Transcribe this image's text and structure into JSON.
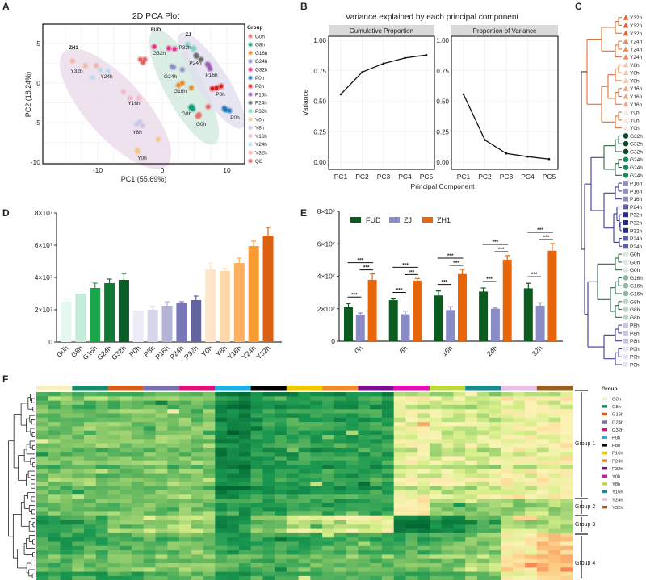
{
  "panel_labels": [
    "A",
    "B",
    "C",
    "D",
    "E",
    "F"
  ],
  "chart_data": [
    {
      "panel": "A",
      "type": "scatter",
      "title": "2D PCA Plot",
      "xlabel": "PC1 (55.69%)",
      "ylabel": "PC2 (18.24%)",
      "xlim": [
        -18,
        13
      ],
      "ylim": [
        -10.2,
        7.3
      ],
      "xticks": [
        -10,
        0,
        10
      ],
      "yticks": [
        5,
        0,
        -5,
        -10
      ],
      "grid": true,
      "legend": {
        "title": "Group",
        "placement": "right"
      },
      "cluster_labels": [
        "FUD",
        "ZJ",
        "ZH1"
      ],
      "groups": [
        {
          "name": "G0h",
          "color": "#e8736e",
          "points": [
            [
              5.6,
              -4.1
            ],
            [
              5.5,
              -4.2
            ],
            [
              5.7,
              -4.0
            ]
          ]
        },
        {
          "name": "G8h",
          "color": "#1a9e77",
          "points": [
            [
              4.4,
              -3.1
            ],
            [
              4.75,
              -3.3
            ],
            [
              4.6,
              -3.0
            ]
          ]
        },
        {
          "name": "G16h",
          "color": "#e88a2a",
          "points": [
            [
              2.5,
              -0.3
            ],
            [
              3.1,
              0.0
            ],
            [
              4.5,
              -0.6
            ]
          ]
        },
        {
          "name": "G24h",
          "color": "#8c8fc8",
          "points": [
            [
              1.5,
              2.1
            ],
            [
              1.75,
              2.0
            ],
            [
              3.1,
              1.7
            ]
          ]
        },
        {
          "name": "G32h",
          "color": "#e7298a",
          "points": [
            [
              -1.25,
              4.6
            ],
            [
              1.0,
              4.4
            ],
            [
              1.9,
              4.3
            ]
          ]
        },
        {
          "name": "P0h",
          "color": "#1f78b4",
          "points": [
            [
              9.6,
              -3.2
            ],
            [
              10.4,
              -3.5
            ],
            [
              9.8,
              -3.4
            ]
          ]
        },
        {
          "name": "P8h",
          "color": "#e31a1c",
          "points": [
            [
              7.75,
              -0.7
            ],
            [
              8.4,
              -0.6
            ],
            [
              9.1,
              -0.4
            ]
          ]
        },
        {
          "name": "P16h",
          "color": "#9b59b6",
          "points": [
            [
              7.0,
              2.4
            ],
            [
              7.2,
              2.2
            ],
            [
              7.4,
              1.8
            ]
          ]
        },
        {
          "name": "P24h",
          "color": "#6b6b6b",
          "points": [
            [
              5.25,
              3.5
            ],
            [
              6.0,
              3.0
            ],
            [
              5.3,
              3.4
            ]
          ]
        },
        {
          "name": "P32h",
          "color": "#7fd6c0",
          "points": [
            [
              3.9,
              4.9
            ],
            [
              4.9,
              4.4
            ],
            [
              4.8,
              4.3
            ]
          ]
        },
        {
          "name": "Y0h",
          "color": "#f5c48a",
          "points": [
            [
              -3.9,
              -8.5
            ],
            [
              -0.6,
              -7.1
            ],
            [
              -3.8,
              -8.7
            ]
          ]
        },
        {
          "name": "Y8h",
          "color": "#c8c8e6",
          "points": [
            [
              -4.0,
              -5.2
            ],
            [
              -3.5,
              -4.9
            ],
            [
              -3.1,
              -5.4
            ]
          ]
        },
        {
          "name": "Y16h",
          "color": "#f4b8c8",
          "points": [
            [
              -6.0,
              -1.1
            ],
            [
              -5.0,
              -1.9
            ],
            [
              -3.6,
              -1.9
            ]
          ]
        },
        {
          "name": "Y24h",
          "color": "#b8dcec",
          "points": [
            [
              -9.6,
              1.7
            ],
            [
              -8.4,
              1.5
            ],
            [
              -10.8,
              0.7
            ]
          ]
        },
        {
          "name": "Y32h",
          "color": "#f4b4a4",
          "points": [
            [
              -13.9,
              2.8
            ],
            [
              -11.9,
              2.2
            ],
            [
              -10.25,
              2.2
            ]
          ]
        },
        {
          "name": "QC",
          "color": "#e06060",
          "points": [
            [
              -3.4,
              3.0
            ],
            [
              -2.7,
              3.0
            ],
            [
              -3.0,
              2.6
            ],
            [
              7.1,
              -3.0
            ]
          ]
        }
      ]
    },
    {
      "panel": "B",
      "type": "line",
      "title": "Variance explained by each principal component",
      "xlabel": "Principal Component",
      "ylabel": "Variance",
      "ylim": [
        0,
        1
      ],
      "yticks": [
        "0.00",
        "0.25",
        "0.50",
        "0.75",
        "1.00"
      ],
      "grid": true,
      "categories": [
        "PC1",
        "PC2",
        "PC3",
        "PC4",
        "PC5"
      ],
      "facets": [
        {
          "name": "Cumulative Proportion",
          "values": [
            0.557,
            0.739,
            0.81,
            0.855,
            0.88
          ]
        },
        {
          "name": "Proportion of Variance",
          "values": [
            0.557,
            0.182,
            0.071,
            0.045,
            0.025
          ]
        }
      ]
    },
    {
      "panel": "C",
      "type": "dendrogram",
      "leaves": [
        {
          "label": "Y32h",
          "count": 3,
          "shape": "triangle",
          "color": "#e8602a"
        },
        {
          "label": "Y24h",
          "count": 3,
          "shape": "triangle",
          "color": "#f08a5a"
        },
        {
          "label": "Y8h",
          "count": 3,
          "shape": "triangle",
          "color": "#f6c8b8"
        },
        {
          "label": "Y16h",
          "count": 3,
          "shape": "triangle",
          "color": "#f4a080"
        },
        {
          "label": "Y0h",
          "count": 3,
          "shape": "triangle",
          "color": "#f8e8e0"
        },
        {
          "label": "G32h",
          "count": 3,
          "shape": "circle",
          "color": "#0a4a2a"
        },
        {
          "label": "G24h",
          "count": 3,
          "shape": "circle",
          "color": "#1a8a5a"
        },
        {
          "label": "P16h",
          "count": 3,
          "shape": "square",
          "color": "#9090c0"
        },
        {
          "label": "P24h",
          "count": 1,
          "shape": "square",
          "color": "#6060a8"
        },
        {
          "label": "P32h",
          "count": 3,
          "shape": "square",
          "color": "#2a2a8a"
        },
        {
          "label": "P24h",
          "count": 2,
          "shape": "square",
          "color": "#6060a8"
        },
        {
          "label": "G0h",
          "count": 3,
          "shape": "circle",
          "color": "#dde8e0"
        },
        {
          "label": "G16h",
          "count": 3,
          "shape": "circle",
          "color": "#8ab8a0"
        },
        {
          "label": "G8h",
          "count": 3,
          "shape": "circle",
          "color": "#b8d8c4"
        },
        {
          "label": "P8h",
          "count": 3,
          "shape": "square",
          "color": "#c8c8e0"
        },
        {
          "label": "P0h",
          "count": 3,
          "shape": "square",
          "color": "#e6e6f0"
        }
      ],
      "branch_colors": {
        "Y": "#e07030",
        "G": "#2a6a40",
        "P": "#3a3a9a",
        "root": "#444444"
      }
    },
    {
      "panel": "D",
      "type": "bar",
      "ylim": [
        0,
        80000000
      ],
      "yticks": [
        "0",
        "2×10⁷",
        "4×10⁷",
        "6×10⁷",
        "8×10⁷"
      ],
      "categories": [
        "G0h",
        "G8h",
        "G16h",
        "G24h",
        "G32h",
        "P0h",
        "P8h",
        "P16h",
        "P24h",
        "P32h",
        "Y0h",
        "Y8h",
        "Y16h",
        "Y24h",
        "Y32h"
      ],
      "values": [
        25000000,
        30000000,
        33500000,
        36500000,
        38500000,
        19500000,
        20000000,
        22500000,
        24000000,
        26000000,
        45000000,
        44000000,
        49000000,
        59500000,
        66000000
      ],
      "errors": [
        1500000,
        0,
        3000000,
        2500000,
        4000000,
        0,
        2000000,
        2500000,
        1000000,
        2500000,
        4000000,
        1500000,
        3000000,
        3000000,
        5000000
      ],
      "colors": [
        "#e6f7ef",
        "#c2ecd8",
        "#1aa64a",
        "#107a35",
        "#0a5c28",
        "#ececf8",
        "#d6d6ea",
        "#b4b4d8",
        "#7878b8",
        "#64649e",
        "#fde6cc",
        "#fdd8aa",
        "#fdb060",
        "#fb9a30",
        "#dd6010"
      ]
    },
    {
      "panel": "E",
      "type": "bar",
      "ylim": [
        0,
        80000000
      ],
      "yticks": [
        "0",
        "2×10⁷",
        "4×10⁷",
        "6×10⁷",
        "8×10⁷"
      ],
      "categories": [
        "0h",
        "8h",
        "16h",
        "24h",
        "32h"
      ],
      "legend": {
        "placement": "top-left"
      },
      "series": [
        {
          "name": "FUD",
          "color": "#0b5a1e",
          "values": [
            21000000,
            25300000,
            28200000,
            30600000,
            32600000
          ],
          "errors": [
            2200000,
            800000,
            2800000,
            2200000,
            3100000
          ]
        },
        {
          "name": "ZJ",
          "color": "#8a8cc8",
          "values": [
            16400000,
            16600000,
            19200000,
            20000000,
            21900000
          ],
          "errors": [
            1000000,
            2000000,
            2000000,
            500000,
            1800000
          ]
        },
        {
          "name": "ZH1",
          "color": "#e8650a",
          "values": [
            37800000,
            37300000,
            41400000,
            50200000,
            55800000
          ],
          "errors": [
            3600000,
            1300000,
            2800000,
            2500000,
            4300000
          ]
        }
      ],
      "significance": [
        {
          "pair": [
            "FUD",
            "ZJ"
          ],
          "label": "***"
        },
        {
          "pair": [
            "ZJ",
            "ZH1"
          ],
          "label": "***"
        },
        {
          "pair": [
            "FUD",
            "ZH1"
          ],
          "label": "***"
        }
      ]
    },
    {
      "panel": "F",
      "type": "heatmap",
      "column_groups": [
        {
          "name": "G0h",
          "color": "#f8f0c0"
        },
        {
          "name": "G8h",
          "color": "#1a8a6a"
        },
        {
          "name": "G16h",
          "color": "#d2601a"
        },
        {
          "name": "G24h",
          "color": "#7a70b0"
        },
        {
          "name": "G32h",
          "color": "#e0107a"
        },
        {
          "name": "P0h",
          "color": "#20b0e0"
        },
        {
          "name": "P8h",
          "color": "#000000"
        },
        {
          "name": "P16h",
          "color": "#f0c800"
        },
        {
          "name": "P24h",
          "color": "#f08a30"
        },
        {
          "name": "P32h",
          "color": "#7a1090"
        },
        {
          "name": "Y0h",
          "color": "#e010b0"
        },
        {
          "name": "Y8h",
          "color": "#c0d840"
        },
        {
          "name": "Y16h",
          "color": "#1a8a8a"
        },
        {
          "name": "Y24h",
          "color": "#e8c0e8"
        },
        {
          "name": "Y32h",
          "color": "#9a6020"
        }
      ],
      "replicates_per_group": 3,
      "legend_title": "Group",
      "row_groups": [
        "Group 1",
        "Group 2",
        "Group 3",
        "Group 4"
      ],
      "color_scale": [
        "#00612e",
        "#1a9850",
        "#7fc466",
        "#d9ef8b",
        "#fbf3b5",
        "#fdc880",
        "#f46d43",
        "#b0001e"
      ],
      "block_means": [
        [
          0.33,
          0.33,
          0.33,
          0.34,
          0.34,
          0.12,
          0.2,
          0.2,
          0.21,
          0.22,
          0.5,
          0.47,
          0.47,
          0.52,
          0.53
        ],
        [
          0.3,
          0.32,
          0.32,
          0.3,
          0.32,
          0.2,
          0.2,
          0.22,
          0.2,
          0.2,
          0.55,
          0.35,
          0.35,
          0.36,
          0.38
        ],
        [
          0.2,
          0.22,
          0.35,
          0.4,
          0.42,
          0.14,
          0.3,
          0.45,
          0.47,
          0.48,
          0.1,
          0.15,
          0.28,
          0.42,
          0.42
        ],
        [
          0.27,
          0.28,
          0.3,
          0.32,
          0.34,
          0.24,
          0.28,
          0.28,
          0.3,
          0.3,
          0.3,
          0.33,
          0.38,
          0.6,
          0.7
        ]
      ]
    }
  ]
}
